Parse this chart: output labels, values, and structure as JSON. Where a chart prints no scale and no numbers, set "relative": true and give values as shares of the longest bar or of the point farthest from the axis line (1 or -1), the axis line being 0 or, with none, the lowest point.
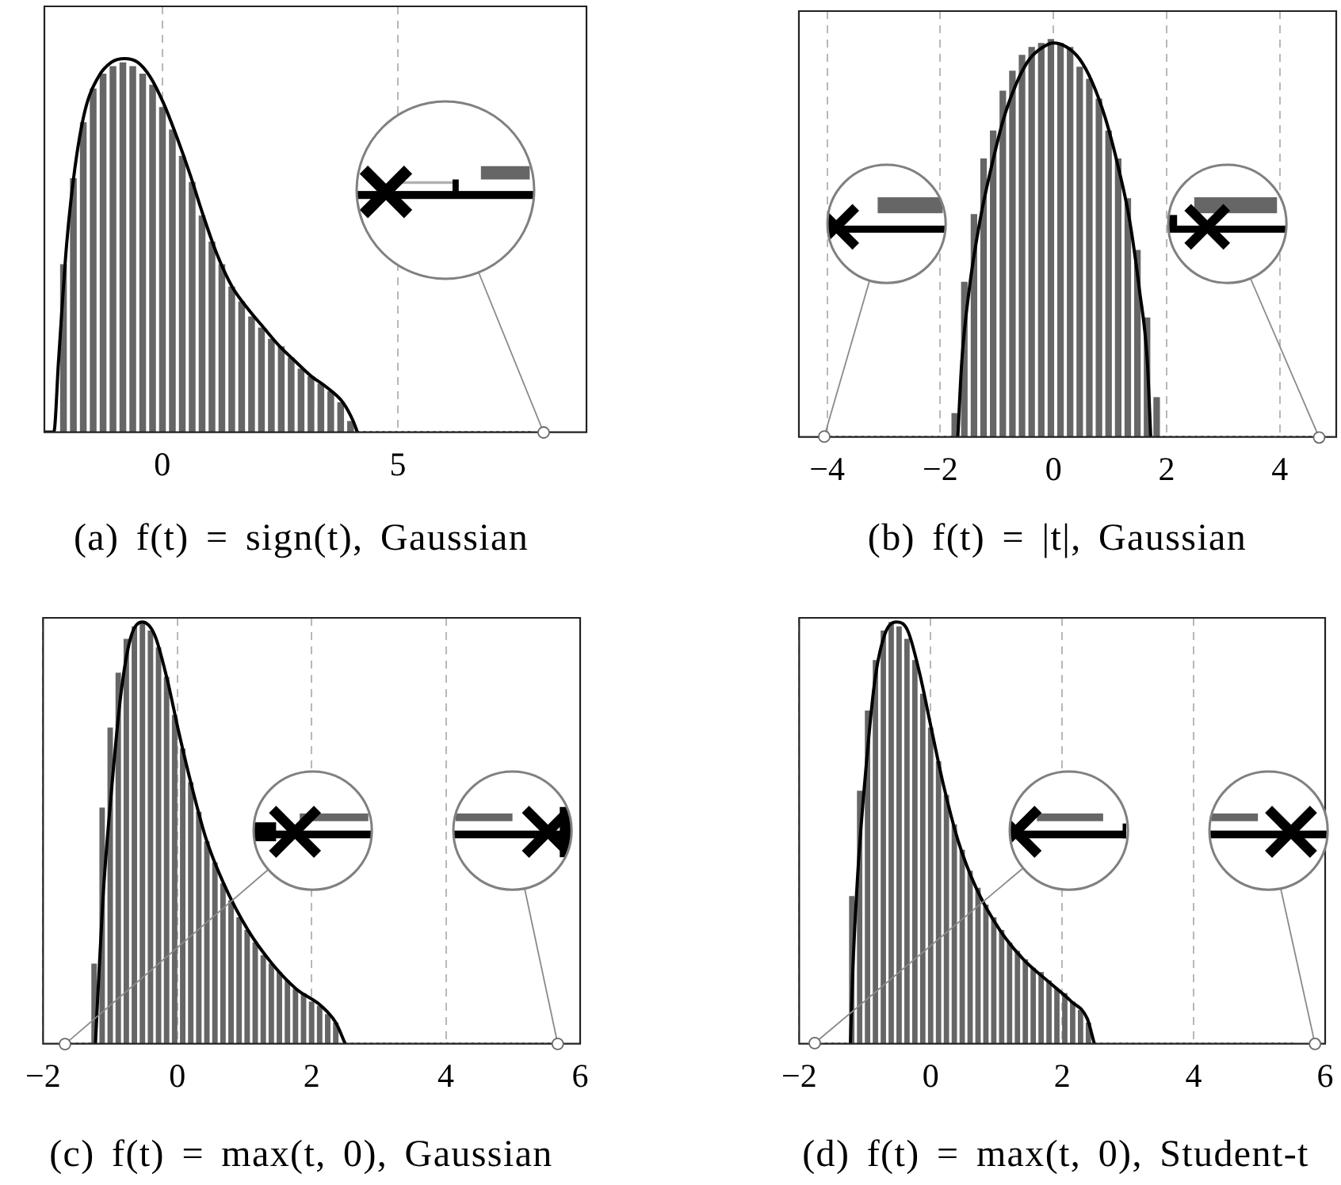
{
  "chart_data": [
    {
      "type": "histogram",
      "title": "(a) f(t) = sign(t), Gaussian",
      "relative": true,
      "xlim": [
        -2.5,
        9
      ],
      "xticks": [
        0,
        5
      ],
      "grid": "x",
      "marker": "none",
      "series": [
        {
          "color": "#666666",
          "bins": [
            -2.2,
            -1.99,
            -1.78,
            -1.57,
            -1.36,
            -1.15,
            -0.94,
            -0.73,
            -0.52,
            -0.31,
            -0.1,
            0.11,
            0.32,
            0.53,
            0.74,
            0.95,
            1.16,
            1.37,
            1.58,
            1.79,
            2.0,
            2.21,
            2.42,
            2.63,
            2.84,
            3.05,
            3.26,
            3.47,
            3.68,
            3.89,
            4.1
          ],
          "values": [
            0.45,
            0.68,
            0.83,
            0.92,
            0.96,
            0.98,
            0.99,
            0.98,
            0.96,
            0.93,
            0.87,
            0.81,
            0.74,
            0.67,
            0.58,
            0.51,
            0.45,
            0.39,
            0.35,
            0.31,
            0.28,
            0.25,
            0.23,
            0.2,
            0.17,
            0.15,
            0.13,
            0.11,
            0.08,
            0.03
          ]
        },
        {
          "type": "line",
          "color": "#000000",
          "x": [
            -2.5,
            -2.3,
            -2.2,
            -2.03,
            -1.86,
            -1.64,
            -1.36,
            -1.08,
            -0.8,
            -0.52,
            -0.25,
            0.03,
            0.31,
            0.59,
            0.87,
            1.15,
            1.48,
            1.82,
            2.15,
            2.49,
            2.82,
            3.16,
            3.49,
            3.83,
            4.05,
            4.14
          ],
          "values": [
            0,
            0,
            0.19,
            0.5,
            0.7,
            0.86,
            0.95,
            0.99,
            1.0,
            0.99,
            0.95,
            0.88,
            0.79,
            0.69,
            0.58,
            0.48,
            0.39,
            0.33,
            0.28,
            0.23,
            0.19,
            0.15,
            0.12,
            0.08,
            0.03,
            0
          ]
        },
        {
          "type": "line",
          "color": "#000000",
          "line_style": "dotted",
          "x": [
            4.14,
            7.9
          ],
          "values": [
            0,
            0
          ]
        }
      ]
    },
    {
      "type": "histogram",
      "title": "(b) f(t) = |t|, Gaussian",
      "relative": true,
      "xlim": [
        -4.5,
        5
      ],
      "xticks": [
        -4,
        -2,
        0,
        2,
        4
      ],
      "grid": "x",
      "marker": "none",
      "series": [
        {
          "color": "#666666",
          "bins": [
            -1.83,
            -1.66,
            -1.49,
            -1.32,
            -1.15,
            -0.98,
            -0.81,
            -0.64,
            -0.47,
            -0.3,
            -0.13,
            0.04,
            0.21,
            0.38,
            0.55,
            0.72,
            0.89,
            1.06,
            1.23,
            1.4,
            1.57,
            1.74,
            1.91
          ],
          "values": [
            0.06,
            0.39,
            0.56,
            0.7,
            0.77,
            0.87,
            0.92,
            0.96,
            0.98,
            0.99,
            1.0,
            0.99,
            0.98,
            0.93,
            0.9,
            0.85,
            0.77,
            0.7,
            0.6,
            0.47,
            0.3,
            0.1
          ]
        },
        {
          "type": "line",
          "color": "#000000",
          "x": [
            -1.69,
            -1.62,
            -1.48,
            -1.29,
            -1.11,
            -0.88,
            -0.65,
            -0.42,
            -0.18,
            0,
            0.23,
            0.46,
            0.69,
            0.92,
            1.16,
            1.34,
            1.52,
            1.66,
            1.72
          ],
          "values": [
            0,
            0.19,
            0.38,
            0.55,
            0.67,
            0.8,
            0.89,
            0.95,
            0.98,
            0.99,
            0.98,
            0.95,
            0.89,
            0.8,
            0.67,
            0.55,
            0.37,
            0.19,
            0
          ]
        },
        {
          "type": "line",
          "color": "#000000",
          "line_style": "dotted",
          "x": [
            -3.95,
            -1.69,
            0,
            1.72,
            4.55
          ],
          "values": [
            0,
            0,
            null,
            0,
            0
          ]
        }
      ]
    },
    {
      "type": "histogram",
      "title": "(c) f(t) = max(t, 0), Gaussian",
      "relative": true,
      "xlim": [
        -2,
        6
      ],
      "xticks": [
        -2,
        0,
        2,
        4,
        6
      ],
      "grid": "x",
      "marker": "none",
      "series": [
        {
          "color": "#666666",
          "bins": [
            -1.3,
            -1.18,
            -1.06,
            -0.94,
            -0.82,
            -0.7,
            -0.58,
            -0.46,
            -0.34,
            -0.22,
            -0.1,
            0.02,
            0.14,
            0.26,
            0.38,
            0.5,
            0.62,
            0.74,
            0.86,
            0.98,
            1.1,
            1.22,
            1.34,
            1.46,
            1.58,
            1.7,
            1.82,
            1.94,
            2.06,
            2.18,
            2.3,
            2.42
          ],
          "values": [
            0.19,
            0.56,
            0.75,
            0.88,
            0.96,
            0.99,
            1.0,
            0.98,
            0.94,
            0.87,
            0.78,
            0.7,
            0.62,
            0.55,
            0.48,
            0.43,
            0.38,
            0.34,
            0.3,
            0.27,
            0.24,
            0.21,
            0.19,
            0.17,
            0.15,
            0.13,
            0.12,
            0.1,
            0.09,
            0.07,
            0.05
          ]
        },
        {
          "type": "line",
          "color": "#000000",
          "x": [
            -1.22,
            -1.11,
            -0.97,
            -0.84,
            -0.7,
            -0.52,
            -0.34,
            -0.16,
            0.02,
            0.2,
            0.42,
            0.69,
            1.05,
            1.41,
            1.77,
            2.14,
            2.36,
            2.5
          ],
          "values": [
            0,
            0.34,
            0.62,
            0.83,
            0.96,
            1.0,
            0.97,
            0.87,
            0.74,
            0.62,
            0.49,
            0.38,
            0.27,
            0.19,
            0.13,
            0.09,
            0.05,
            0
          ]
        },
        {
          "type": "line",
          "color": "#000000",
          "line_style": "dotted",
          "x": [
            -1.6,
            -1.22,
            0,
            2.5,
            5.55
          ],
          "values": [
            0,
            0,
            null,
            0,
            0
          ]
        }
      ]
    },
    {
      "type": "histogram",
      "title": "(d) f(t) = max(t, 0), Student-t",
      "relative": true,
      "xlim": [
        -2,
        6
      ],
      "xticks": [
        -2,
        0,
        2,
        4,
        6
      ],
      "grid": "x",
      "marker": "none",
      "series": [
        {
          "color": "#666666",
          "bins": [
            -1.26,
            -1.14,
            -1.02,
            -0.9,
            -0.78,
            -0.66,
            -0.54,
            -0.42,
            -0.3,
            -0.18,
            -0.06,
            0.06,
            0.18,
            0.3,
            0.42,
            0.54,
            0.66,
            0.78,
            0.9,
            1.02,
            1.14,
            1.26,
            1.38,
            1.5,
            1.62,
            1.74,
            1.86,
            1.98,
            2.1,
            2.22,
            2.34,
            2.46
          ],
          "values": [
            0.35,
            0.6,
            0.79,
            0.91,
            0.98,
            1.0,
            0.99,
            0.96,
            0.91,
            0.83,
            0.75,
            0.67,
            0.59,
            0.52,
            0.46,
            0.41,
            0.37,
            0.33,
            0.3,
            0.27,
            0.24,
            0.22,
            0.2,
            0.18,
            0.17,
            0.15,
            0.13,
            0.12,
            0.1,
            0.08,
            0.05
          ]
        },
        {
          "type": "line",
          "color": "#000000",
          "x": [
            -1.22,
            -1.19,
            -1.11,
            -0.98,
            -0.85,
            -0.7,
            -0.52,
            -0.35,
            -0.17,
            0.02,
            0.2,
            0.42,
            0.69,
            1.05,
            1.41,
            1.77,
            2.14,
            2.38,
            2.49
          ],
          "values": [
            0,
            0.15,
            0.4,
            0.66,
            0.86,
            0.97,
            1.0,
            0.98,
            0.88,
            0.74,
            0.61,
            0.48,
            0.37,
            0.27,
            0.2,
            0.15,
            0.1,
            0.06,
            0
          ]
        },
        {
          "type": "line",
          "color": "#000000",
          "line_style": "dotted",
          "x": [
            -1.6,
            -1.22,
            0,
            2.49,
            5.55
          ],
          "values": [
            0,
            0,
            null,
            0,
            0
          ]
        }
      ]
    }
  ]
}
